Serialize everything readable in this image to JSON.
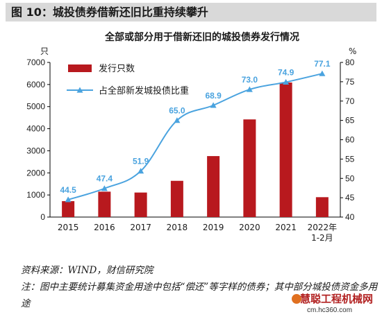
{
  "figure_title": "图 10：城投债券借新还旧比重持续攀升",
  "source": "资料来源：WIND，财信研究院",
  "note": "注：图中主要统计募集资金用途中包括“偿还”等字样的债券；其中部分城投债资金多用途",
  "watermark": {
    "text": "慧聪工程机械网",
    "url": "cm.hc360.com"
  },
  "colors": {
    "bar": "#b8191e",
    "line": "#4aa3df",
    "label": "#4aa3df",
    "title_bg": "#d9d9d9"
  },
  "chart_data": {
    "type": "bar",
    "title": "全部或部分用于借新还旧的城投债券发行情况",
    "categories": [
      "2015",
      "2016",
      "2017",
      "2018",
      "2019",
      "2020",
      "2021",
      "2022年\n1-2月"
    ],
    "y_left_unit": "只",
    "y_right_unit": "%",
    "ylim_left": [
      0,
      7000
    ],
    "ylim_right": [
      40,
      80
    ],
    "yticks_left": [
      0,
      1000,
      2000,
      3000,
      4000,
      5000,
      6000,
      7000
    ],
    "yticks_right": [
      40,
      45,
      50,
      55,
      60,
      65,
      70,
      75,
      80
    ],
    "legend_position": "top-left",
    "series": [
      {
        "name": "发行只数",
        "type": "bar",
        "axis": "left",
        "values": [
          720,
          1150,
          1110,
          1640,
          2760,
          4420,
          6090,
          900
        ]
      },
      {
        "name": "占全部新发城投债比重",
        "type": "line",
        "axis": "right",
        "values": [
          44.5,
          47.4,
          51.9,
          65.0,
          68.9,
          73.0,
          74.9,
          77.1
        ],
        "labels": [
          "44.5",
          "47.4",
          "51.9",
          "65.0",
          "68.9",
          "73.0",
          "74.9",
          "77.1"
        ]
      }
    ]
  }
}
